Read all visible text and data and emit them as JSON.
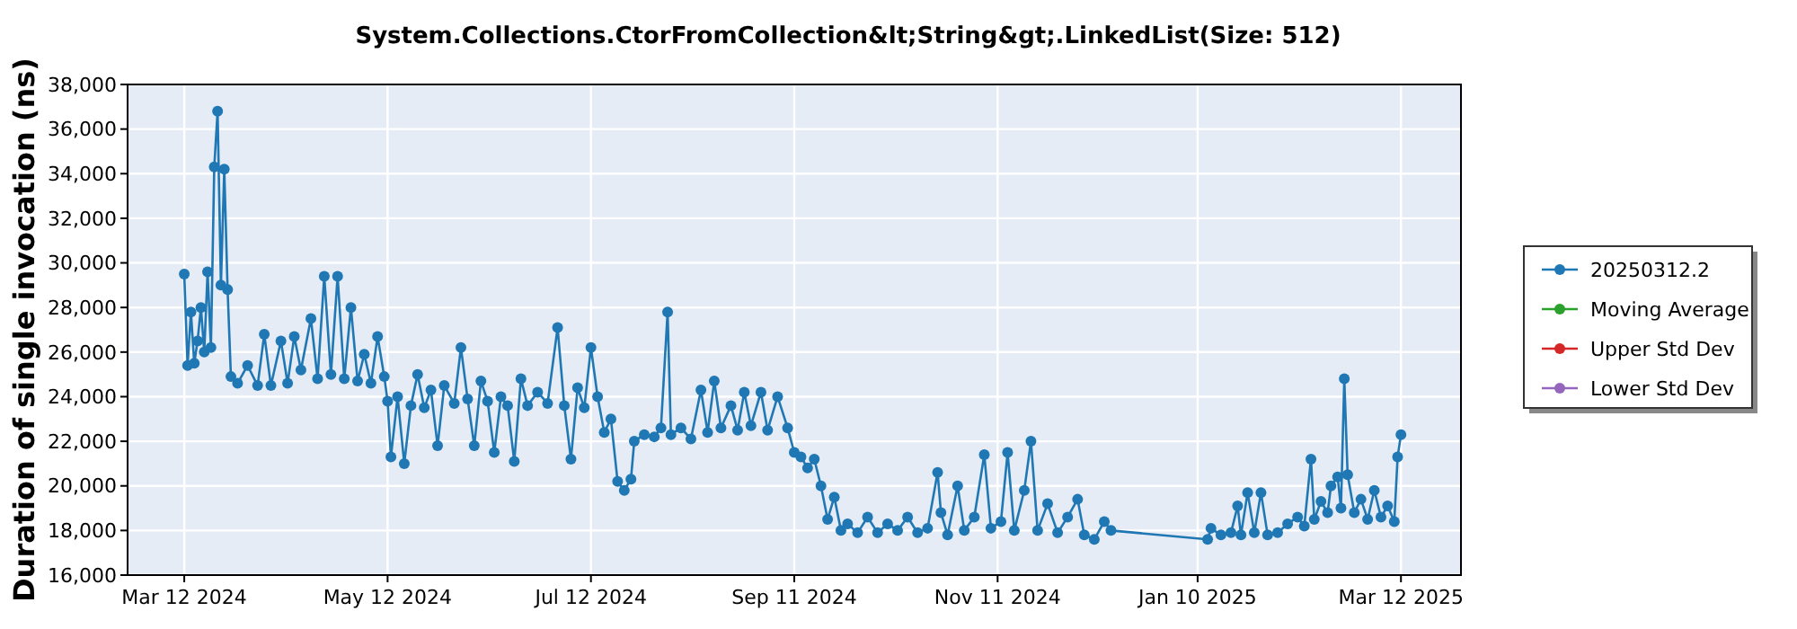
{
  "chart_data": {
    "type": "line",
    "title": "System.Collections.CtorFromCollection&lt;String&gt;.LinkedList(Size: 512)",
    "ylabel": "Duration of single invocation (ns)",
    "xlim": [
      "2024-02-24",
      "2025-03-30"
    ],
    "xticks": [
      {
        "value": "2024-03-12",
        "label": "Mar 12 2024"
      },
      {
        "value": "2024-05-12",
        "label": "May 12 2024"
      },
      {
        "value": "2024-07-12",
        "label": "Jul 12 2024"
      },
      {
        "value": "2024-09-11",
        "label": "Sep 11 2024"
      },
      {
        "value": "2024-11-11",
        "label": "Nov 11 2024"
      },
      {
        "value": "2025-01-10",
        "label": "Jan 10 2025"
      },
      {
        "value": "2025-03-12",
        "label": "Mar 12 2025"
      }
    ],
    "ylim": [
      16000,
      38000
    ],
    "yticks": [
      {
        "value": 16000,
        "label": "16,000"
      },
      {
        "value": 18000,
        "label": "18,000"
      },
      {
        "value": 20000,
        "label": "20,000"
      },
      {
        "value": 22000,
        "label": "22,000"
      },
      {
        "value": 24000,
        "label": "24,000"
      },
      {
        "value": 26000,
        "label": "26,000"
      },
      {
        "value": 28000,
        "label": "28,000"
      },
      {
        "value": 30000,
        "label": "30,000"
      },
      {
        "value": 32000,
        "label": "32,000"
      },
      {
        "value": 34000,
        "label": "34,000"
      },
      {
        "value": 36000,
        "label": "36,000"
      },
      {
        "value": 38000,
        "label": "38,000"
      }
    ],
    "grid": true,
    "legend": "right",
    "marker": "circle",
    "line_style": "solid",
    "series": [
      {
        "name": "20250312.2",
        "color": "#1f77b4",
        "x": [
          "2024-03-12",
          "2024-03-13",
          "2024-03-14",
          "2024-03-15",
          "2024-03-16",
          "2024-03-17",
          "2024-03-18",
          "2024-03-19",
          "2024-03-20",
          "2024-03-21",
          "2024-03-22",
          "2024-03-23",
          "2024-03-24",
          "2024-03-25",
          "2024-03-26",
          "2024-03-28",
          "2024-03-31",
          "2024-04-03",
          "2024-04-05",
          "2024-04-07",
          "2024-04-10",
          "2024-04-12",
          "2024-04-14",
          "2024-04-16",
          "2024-04-19",
          "2024-04-21",
          "2024-04-23",
          "2024-04-25",
          "2024-04-27",
          "2024-04-29",
          "2024-05-01",
          "2024-05-03",
          "2024-05-05",
          "2024-05-07",
          "2024-05-09",
          "2024-05-11",
          "2024-05-12",
          "2024-05-13",
          "2024-05-15",
          "2024-05-17",
          "2024-05-19",
          "2024-05-21",
          "2024-05-23",
          "2024-05-25",
          "2024-05-27",
          "2024-05-29",
          "2024-06-01",
          "2024-06-03",
          "2024-06-05",
          "2024-06-07",
          "2024-06-09",
          "2024-06-11",
          "2024-06-13",
          "2024-06-15",
          "2024-06-17",
          "2024-06-19",
          "2024-06-21",
          "2024-06-23",
          "2024-06-26",
          "2024-06-29",
          "2024-07-02",
          "2024-07-04",
          "2024-07-06",
          "2024-07-08",
          "2024-07-10",
          "2024-07-12",
          "2024-07-14",
          "2024-07-16",
          "2024-07-18",
          "2024-07-20",
          "2024-07-22",
          "2024-07-24",
          "2024-07-25",
          "2024-07-28",
          "2024-07-31",
          "2024-08-02",
          "2024-08-04",
          "2024-08-05",
          "2024-08-08",
          "2024-08-11",
          "2024-08-14",
          "2024-08-16",
          "2024-08-18",
          "2024-08-20",
          "2024-08-23",
          "2024-08-25",
          "2024-08-27",
          "2024-08-29",
          "2024-09-01",
          "2024-09-03",
          "2024-09-06",
          "2024-09-09",
          "2024-09-11",
          "2024-09-13",
          "2024-09-15",
          "2024-09-17",
          "2024-09-19",
          "2024-09-21",
          "2024-09-23",
          "2024-09-25",
          "2024-09-27",
          "2024-09-30",
          "2024-10-03",
          "2024-10-06",
          "2024-10-09",
          "2024-10-12",
          "2024-10-15",
          "2024-10-18",
          "2024-10-21",
          "2024-10-24",
          "2024-10-25",
          "2024-10-27",
          "2024-10-30",
          "2024-11-01",
          "2024-11-04",
          "2024-11-07",
          "2024-11-09",
          "2024-11-12",
          "2024-11-14",
          "2024-11-16",
          "2024-11-19",
          "2024-11-21",
          "2024-11-23",
          "2024-11-26",
          "2024-11-29",
          "2024-12-02",
          "2024-12-05",
          "2024-12-07",
          "2024-12-10",
          "2024-12-13",
          "2024-12-15",
          "2025-01-13",
          "2025-01-14",
          "2025-01-17",
          "2025-01-20",
          "2025-01-22",
          "2025-01-23",
          "2025-01-25",
          "2025-01-27",
          "2025-01-29",
          "2025-01-31",
          "2025-02-03",
          "2025-02-06",
          "2025-02-09",
          "2025-02-11",
          "2025-02-13",
          "2025-02-14",
          "2025-02-16",
          "2025-02-18",
          "2025-02-19",
          "2025-02-21",
          "2025-02-22",
          "2025-02-23",
          "2025-02-24",
          "2025-02-26",
          "2025-02-28",
          "2025-03-02",
          "2025-03-04",
          "2025-03-06",
          "2025-03-08",
          "2025-03-10",
          "2025-03-11",
          "2025-03-12"
        ],
        "values": [
          29500,
          25400,
          27800,
          25500,
          26500,
          28000,
          26000,
          29600,
          26200,
          34300,
          36800,
          29000,
          34200,
          28800,
          24900,
          24600,
          25400,
          24500,
          26800,
          24500,
          26500,
          24600,
          26700,
          25200,
          27500,
          24800,
          29400,
          25000,
          29400,
          24800,
          28000,
          24700,
          25900,
          24600,
          26700,
          24900,
          23800,
          21300,
          24000,
          21000,
          23600,
          25000,
          23500,
          24300,
          21800,
          24500,
          23700,
          26200,
          23900,
          21800,
          24700,
          23800,
          21500,
          24000,
          23600,
          21100,
          24800,
          23600,
          24200,
          23700,
          27100,
          23600,
          21200,
          24400,
          23500,
          26200,
          24000,
          22400,
          23000,
          20200,
          19800,
          20300,
          22000,
          22300,
          22200,
          22600,
          27800,
          22300,
          22600,
          22100,
          24300,
          22400,
          24700,
          22600,
          23600,
          22500,
          24200,
          22700,
          24200,
          22500,
          24000,
          22600,
          21500,
          21300,
          20800,
          21200,
          20000,
          18500,
          19500,
          18000,
          18300,
          17900,
          18600,
          17900,
          18300,
          18000,
          18600,
          17900,
          18100,
          20600,
          18800,
          17800,
          20000,
          18000,
          18600,
          21400,
          18100,
          18400,
          21500,
          18000,
          19800,
          22000,
          18000,
          19200,
          17900,
          18600,
          19400,
          17800,
          17600,
          18400,
          18000,
          17600,
          18100,
          17800,
          17900,
          19100,
          17800,
          19700,
          17900,
          19700,
          17800,
          17900,
          18300,
          18600,
          18200,
          21200,
          18500,
          19300,
          18800,
          20000,
          20400,
          19000,
          24800,
          20500,
          18800,
          19400,
          18500,
          19800,
          18600,
          19100,
          18400,
          21300,
          22300
        ]
      },
      {
        "name": "Moving Average",
        "color": "#2ca02c"
      },
      {
        "name": "Upper Std Dev",
        "color": "#d62728"
      },
      {
        "name": "Lower Std Dev",
        "color": "#9467bd"
      }
    ]
  }
}
